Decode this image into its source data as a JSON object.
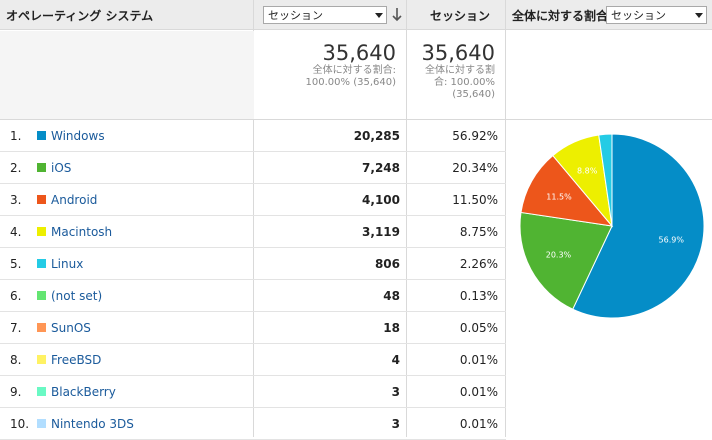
{
  "header": {
    "dimension": "オペレーティング システム",
    "metric_select": "セッション",
    "metric_col": "セッション",
    "pie_label": "全体に対する割合:",
    "pie_select": "セッション"
  },
  "summary": {
    "sessions_total": "35,640",
    "sessions_pct_label": "全体に対する割合:",
    "sessions_pct_value": "100.00% (35,640)",
    "metric_total": "35,640",
    "metric_pct_line1": "全体に対する割",
    "metric_pct_line2": "合: 100.00%",
    "metric_pct_line3": "(35,640)"
  },
  "rows": [
    {
      "idx": "1.",
      "name": "Windows",
      "sessions": "20,285",
      "pct": "56.92%",
      "color": "#058dc7"
    },
    {
      "idx": "2.",
      "name": "iOS",
      "sessions": "7,248",
      "pct": "20.34%",
      "color": "#50b432"
    },
    {
      "idx": "3.",
      "name": "Android",
      "sessions": "4,100",
      "pct": "11.50%",
      "color": "#ed561b"
    },
    {
      "idx": "4.",
      "name": "Macintosh",
      "sessions": "3,119",
      "pct": "8.75%",
      "color": "#edef00"
    },
    {
      "idx": "5.",
      "name": "Linux",
      "sessions": "806",
      "pct": "2.26%",
      "color": "#24cbe5"
    },
    {
      "idx": "6.",
      "name": "(not set)",
      "sessions": "48",
      "pct": "0.13%",
      "color": "#64e572"
    },
    {
      "idx": "7.",
      "name": "SunOS",
      "sessions": "18",
      "pct": "0.05%",
      "color": "#ff9655"
    },
    {
      "idx": "8.",
      "name": "FreeBSD",
      "sessions": "4",
      "pct": "0.01%",
      "color": "#fff263"
    },
    {
      "idx": "9.",
      "name": "BlackBerry",
      "sessions": "3",
      "pct": "0.01%",
      "color": "#6af9c4"
    },
    {
      "idx": "10.",
      "name": "Nintendo 3DS",
      "sessions": "3",
      "pct": "0.01%",
      "color": "#b2deff"
    }
  ],
  "chart_data": {
    "type": "pie",
    "labels": [
      "Windows",
      "iOS",
      "Android",
      "Macintosh",
      "Linux"
    ],
    "values": [
      56.9,
      20.3,
      11.5,
      8.8,
      2.3
    ],
    "value_labels": [
      "56.9%",
      "20.3%",
      "11.5%",
      "8.8%",
      ""
    ],
    "colors": [
      "#058dc7",
      "#50b432",
      "#ed561b",
      "#edef00",
      "#24cbe5"
    ]
  }
}
